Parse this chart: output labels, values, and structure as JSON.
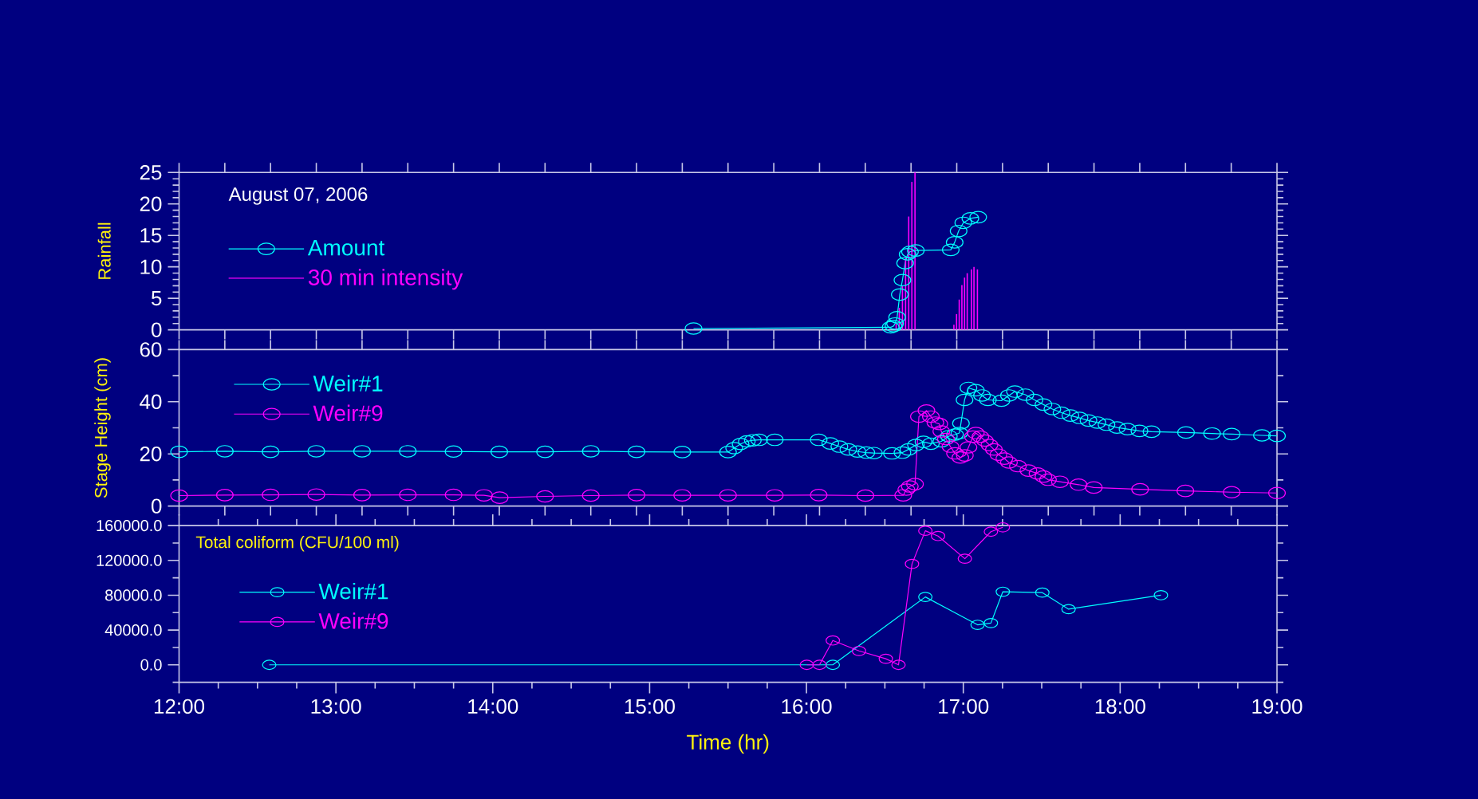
{
  "chart_data": [
    {
      "type": "line",
      "ylabel": "Rainfall",
      "annotations": [
        "August 07, 2006"
      ],
      "legend": "left",
      "marker": "circle",
      "tick_labels": "y",
      "xlim": [
        12,
        19
      ],
      "ylim": [
        0,
        25
      ],
      "xticks": [
        {
          "value": 12,
          "label": null
        },
        {
          "value": 12.2917,
          "label": null
        },
        {
          "value": 12.5833,
          "label": null
        },
        {
          "value": 12.875,
          "label": null
        },
        {
          "value": 13.1667,
          "label": null
        },
        {
          "value": 13.4583,
          "label": null
        },
        {
          "value": 13.75,
          "label": null
        },
        {
          "value": 14.0417,
          "label": null
        },
        {
          "value": 14.3333,
          "label": null
        },
        {
          "value": 14.625,
          "label": null
        },
        {
          "value": 14.9167,
          "label": null
        },
        {
          "value": 15.2083,
          "label": null
        },
        {
          "value": 15.5,
          "label": null
        },
        {
          "value": 15.7917,
          "label": null
        },
        {
          "value": 16.0833,
          "label": null
        },
        {
          "value": 16.375,
          "label": null
        },
        {
          "value": 16.6667,
          "label": null
        },
        {
          "value": 16.9583,
          "label": null
        },
        {
          "value": 17.25,
          "label": null
        },
        {
          "value": 17.5417,
          "label": null
        },
        {
          "value": 17.8333,
          "label": null
        },
        {
          "value": 18.125,
          "label": null
        },
        {
          "value": 18.4167,
          "label": null
        },
        {
          "value": 18.7083,
          "label": null
        },
        {
          "value": 19,
          "label": null
        }
      ],
      "yticks": [
        0,
        {
          "value": 1,
          "label": null
        },
        {
          "value": 2,
          "label": null
        },
        {
          "value": 3,
          "label": null
        },
        {
          "value": 4,
          "label": null
        },
        5,
        {
          "value": 6,
          "label": null
        },
        {
          "value": 7,
          "label": null
        },
        {
          "value": 8,
          "label": null
        },
        {
          "value": 9,
          "label": null
        },
        10,
        {
          "value": 11,
          "label": null
        },
        {
          "value": 12,
          "label": null
        },
        {
          "value": 13,
          "label": null
        },
        {
          "value": 14,
          "label": null
        },
        15,
        {
          "value": 16,
          "label": null
        },
        {
          "value": 17,
          "label": null
        },
        {
          "value": 18,
          "label": null
        },
        {
          "value": 19,
          "label": null
        },
        20,
        {
          "value": 21,
          "label": null
        },
        {
          "value": 22,
          "label": null
        },
        {
          "value": 23,
          "label": null
        },
        {
          "value": 24,
          "label": null
        },
        25
      ],
      "series": [
        {
          "name": "Amount",
          "type": "line",
          "color": "#00ffff",
          "x": [
            15.28,
            16.537,
            16.555,
            16.565,
            16.578,
            16.595,
            16.612,
            16.629,
            16.645,
            16.66,
            16.697,
            16.92,
            16.945,
            16.97,
            17.0,
            17.045,
            17.095
          ],
          "values": [
            0.2,
            0.4,
            0.6,
            1.0,
            2.0,
            5.6,
            7.9,
            10.6,
            12.0,
            12.4,
            12.6,
            12.7,
            13.9,
            15.7,
            17.0,
            17.7,
            17.9
          ]
        },
        {
          "name": "30 min intensity",
          "type": "bar",
          "color": "#ff00ff",
          "x": [
            16.572,
            16.592,
            16.612,
            16.632,
            16.652,
            16.672,
            16.692,
            16.94,
            16.957,
            16.974,
            16.991,
            17.008,
            17.025,
            17.052,
            17.068,
            17.09
          ],
          "values": [
            1.0,
            3.5,
            7.0,
            11.5,
            18.0,
            23.5,
            25.0,
            0.8,
            2.5,
            4.8,
            7.1,
            8.3,
            9.0,
            9.6,
            10.0,
            9.6
          ]
        }
      ]
    },
    {
      "type": "line",
      "ylabel": "Stage Height (cm)",
      "legend": "top left",
      "marker": "circle",
      "tick_labels": "y",
      "xlim": [
        12,
        19
      ],
      "ylim": [
        0,
        60
      ],
      "xticks": [
        {
          "value": 12,
          "label": null
        },
        {
          "value": 12.2917,
          "label": null
        },
        {
          "value": 12.5833,
          "label": null
        },
        {
          "value": 12.875,
          "label": null
        },
        {
          "value": 13.1667,
          "label": null
        },
        {
          "value": 13.4583,
          "label": null
        },
        {
          "value": 13.75,
          "label": null
        },
        {
          "value": 14.0417,
          "label": null
        },
        {
          "value": 14.3333,
          "label": null
        },
        {
          "value": 14.625,
          "label": null
        },
        {
          "value": 14.9167,
          "label": null
        },
        {
          "value": 15.2083,
          "label": null
        },
        {
          "value": 15.5,
          "label": null
        },
        {
          "value": 15.7917,
          "label": null
        },
        {
          "value": 16.0833,
          "label": null
        },
        {
          "value": 16.375,
          "label": null
        },
        {
          "value": 16.6667,
          "label": null
        },
        {
          "value": 16.9583,
          "label": null
        },
        {
          "value": 17.25,
          "label": null
        },
        {
          "value": 17.5417,
          "label": null
        },
        {
          "value": 17.8333,
          "label": null
        },
        {
          "value": 18.125,
          "label": null
        },
        {
          "value": 18.4167,
          "label": null
        },
        {
          "value": 18.7083,
          "label": null
        },
        {
          "value": 19,
          "label": null
        }
      ],
      "yticks": [
        0,
        {
          "value": 10,
          "label": null
        },
        20,
        {
          "value": 30,
          "label": null
        },
        40,
        {
          "value": 50,
          "label": null
        },
        60
      ],
      "series": [
        {
          "name": "Weir#1",
          "color": "#00ffff",
          "x": [
            12,
            12.2917,
            12.5833,
            12.875,
            13.1667,
            13.4583,
            13.75,
            14.0417,
            14.3333,
            14.625,
            14.9167,
            15.2083,
            15.5,
            15.539,
            15.58,
            15.62,
            15.658,
            15.698,
            15.798,
            16.078,
            16.152,
            16.21,
            16.267,
            16.325,
            16.382,
            16.43,
            16.545,
            16.612,
            16.65,
            16.698,
            16.746,
            16.793,
            16.86,
            16.908,
            16.947,
            16.975,
            16.985,
            17.008,
            17.033,
            17.08,
            17.119,
            17.157,
            17.243,
            17.291,
            17.329,
            17.396,
            17.454,
            17.511,
            17.568,
            17.626,
            17.683,
            17.741,
            17.798,
            17.855,
            17.913,
            17.98,
            18.047,
            18.123,
            18.2,
            18.42,
            18.586,
            18.711,
            18.904,
            19.0
          ],
          "values": [
            20.8,
            21.0,
            20.8,
            21.0,
            21.0,
            21.0,
            20.9,
            20.8,
            20.8,
            21.0,
            20.8,
            20.7,
            20.7,
            22.2,
            23.8,
            24.8,
            25.2,
            25.4,
            25.4,
            25.4,
            24.0,
            22.8,
            21.7,
            20.9,
            20.5,
            20.3,
            20.2,
            20.5,
            21.7,
            23.4,
            24.6,
            23.9,
            24.8,
            26.8,
            27.4,
            28.0,
            31.7,
            40.7,
            45.3,
            44.4,
            42.4,
            40.7,
            40.4,
            42.4,
            43.9,
            42.7,
            40.7,
            38.9,
            37.2,
            35.8,
            34.7,
            33.8,
            32.8,
            32.0,
            31.2,
            30.1,
            29.5,
            28.8,
            28.5,
            28.2,
            27.8,
            27.6,
            27.1,
            26.9
          ]
        },
        {
          "name": "Weir#9",
          "color": "#ff00ff",
          "x": [
            12,
            12.2917,
            12.5833,
            12.875,
            13.1667,
            13.4583,
            13.75,
            13.944,
            14.044,
            14.333,
            14.625,
            14.917,
            15.208,
            15.5,
            15.798,
            16.078,
            16.376,
            16.617,
            16.637,
            16.659,
            16.692,
            16.717,
            16.765,
            16.793,
            16.822,
            16.847,
            16.86,
            16.889,
            16.918,
            16.947,
            16.981,
            17.01,
            17.033,
            17.061,
            17.08,
            17.109,
            17.138,
            17.167,
            17.195,
            17.224,
            17.262,
            17.291,
            17.348,
            17.415,
            17.473,
            17.511,
            17.54,
            17.616,
            17.735,
            17.832,
            18.127,
            18.416,
            18.711,
            19.0
          ],
          "values": [
            4.0,
            4.2,
            4.3,
            4.4,
            4.2,
            4.3,
            4.3,
            4.1,
            3.2,
            3.7,
            4.0,
            4.2,
            4.1,
            4.1,
            4.1,
            4.2,
            4.0,
            4.1,
            6.3,
            7.5,
            8.4,
            34.3,
            36.6,
            34.3,
            32.0,
            31.5,
            28.6,
            25.7,
            22.8,
            20.2,
            18.6,
            19.4,
            22.5,
            26.6,
            28.0,
            26.6,
            25.1,
            23.4,
            21.7,
            19.7,
            18.2,
            16.7,
            15.3,
            13.6,
            12.5,
            11.3,
            10.1,
            9.3,
            8.2,
            7.1,
            6.4,
            5.8,
            5.3,
            5.0
          ]
        }
      ]
    },
    {
      "type": "line",
      "ylabel": "Total coliform (CFU/100 ml)",
      "xlabel": "Time (hr)",
      "legend": "left",
      "marker": "circle",
      "xlim": [
        12,
        19
      ],
      "ylim": [
        -20000,
        160000
      ],
      "xticks": [
        {
          "value": 12,
          "label": "12:00"
        },
        {
          "value": 12.25,
          "label": null
        },
        {
          "value": 12.5,
          "label": null
        },
        {
          "value": 12.75,
          "label": null
        },
        {
          "value": 13,
          "label": "13:00"
        },
        {
          "value": 13.25,
          "label": null
        },
        {
          "value": 13.5,
          "label": null
        },
        {
          "value": 13.75,
          "label": null
        },
        {
          "value": 14,
          "label": "14:00"
        },
        {
          "value": 14.25,
          "label": null
        },
        {
          "value": 14.5,
          "label": null
        },
        {
          "value": 14.75,
          "label": null
        },
        {
          "value": 15,
          "label": "15:00"
        },
        {
          "value": 15.25,
          "label": null
        },
        {
          "value": 15.5,
          "label": null
        },
        {
          "value": 15.75,
          "label": null
        },
        {
          "value": 16,
          "label": "16:00"
        },
        {
          "value": 16.25,
          "label": null
        },
        {
          "value": 16.5,
          "label": null
        },
        {
          "value": 16.75,
          "label": null
        },
        {
          "value": 17,
          "label": "17:00"
        },
        {
          "value": 17.25,
          "label": null
        },
        {
          "value": 17.5,
          "label": null
        },
        {
          "value": 17.75,
          "label": null
        },
        {
          "value": 18,
          "label": "18:00"
        },
        {
          "value": 18.25,
          "label": null
        },
        {
          "value": 18.5,
          "label": null
        },
        {
          "value": 18.75,
          "label": null
        },
        {
          "value": 19,
          "label": "19:00"
        }
      ],
      "yticks": [
        {
          "value": -20000,
          "label": null
        },
        {
          "value": 0,
          "label": "0.0"
        },
        {
          "value": 20000,
          "label": null
        },
        {
          "value": 40000,
          "label": "40000.0"
        },
        {
          "value": 60000,
          "label": null
        },
        {
          "value": 80000,
          "label": "80000.0"
        },
        {
          "value": 100000,
          "label": null
        },
        {
          "value": 120000,
          "label": "120000.0"
        },
        {
          "value": 140000,
          "label": null
        },
        {
          "value": 160000,
          "label": "160000.0"
        }
      ],
      "series": [
        {
          "name": "Weir#1",
          "color": "#00ffff",
          "x": [
            12.575,
            16.168,
            16.758,
            17.091,
            17.176,
            17.252,
            17.504,
            17.671,
            18.26
          ],
          "values": [
            0,
            0,
            78000,
            46000,
            48000,
            84000,
            83000,
            64000,
            80000
          ]
        },
        {
          "name": "Weir#9",
          "color": "#ff00ff",
          "x": [
            16.002,
            16.083,
            16.168,
            16.335,
            16.506,
            16.587,
            16.673,
            16.758,
            16.839,
            17.01,
            17.176,
            17.252
          ],
          "values": [
            0,
            0,
            28000,
            16000,
            7000,
            0,
            116000,
            154000,
            148000,
            122000,
            153000,
            158000
          ]
        }
      ]
    }
  ]
}
